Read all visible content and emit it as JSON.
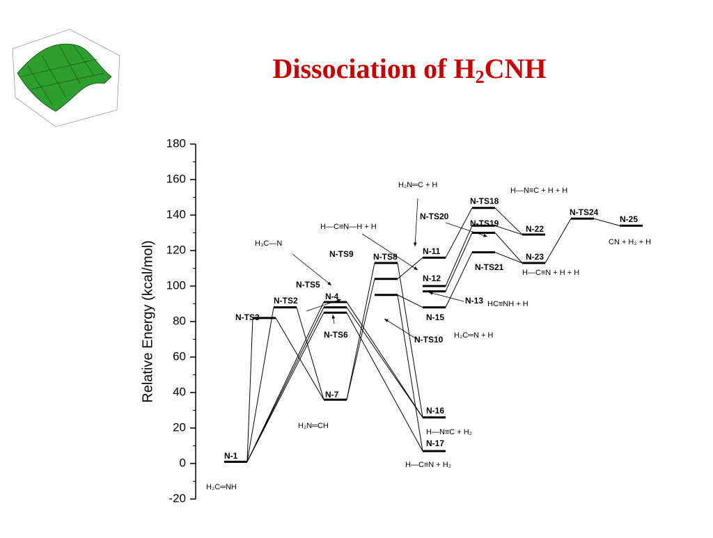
{
  "chart_data": {
    "type": "energy-diagram",
    "title": {
      "text": "Dissociation of H",
      "subscript": "2",
      "rest": "CNH"
    },
    "ylabel": "Relative Energy (kcal/mol)",
    "ylim": [
      -20,
      180
    ],
    "yticks": [
      -20,
      0,
      20,
      40,
      60,
      80,
      100,
      120,
      140,
      160,
      180
    ],
    "levels": [
      {
        "label": "N-1",
        "value": 1
      },
      {
        "label": "N-TS3",
        "value": 82
      },
      {
        "label": "N-TS2",
        "value": 88
      },
      {
        "label": "N-TS5",
        "value": 91
      },
      {
        "label": "N-4",
        "value": 88
      },
      {
        "label": "N-TS6",
        "value": 85
      },
      {
        "label": "N-7",
        "value": 36
      },
      {
        "label": "N-TS9",
        "value": 104
      },
      {
        "label": "N-TS8",
        "value": 113
      },
      {
        "label": "N-TS10",
        "value": 95
      },
      {
        "label": "N-11",
        "value": 116
      },
      {
        "label": "N-12",
        "value": 100
      },
      {
        "label": "N-13",
        "value": 97
      },
      {
        "label": "N-15",
        "value": 88
      },
      {
        "label": "N-16",
        "value": 26
      },
      {
        "label": "N-17",
        "value": 7
      },
      {
        "label": "N-TS18",
        "value": 144
      },
      {
        "label": "N-TS20",
        "value": 130
      },
      {
        "label": "N-TS19",
        "value": 134
      },
      {
        "label": "N-TS21",
        "value": 119
      },
      {
        "label": "N-22",
        "value": 129
      },
      {
        "label": "N-23",
        "value": 113
      },
      {
        "label": "N-TS24",
        "value": 138
      },
      {
        "label": "N-25",
        "value": 134
      }
    ],
    "annotations": [
      "H—N≡C + H + H",
      "CN + H₂ + H",
      "H—C≡N + H + H",
      "H—N≡C + H₂",
      "H—C≡N + H₂",
      "H₂N═C + H",
      "H—C≡N—H + H",
      "HC≡NH + H",
      "H₂C═N + H",
      "H₂C═NH",
      "H₂N═CH",
      "H₃C—N"
    ]
  }
}
